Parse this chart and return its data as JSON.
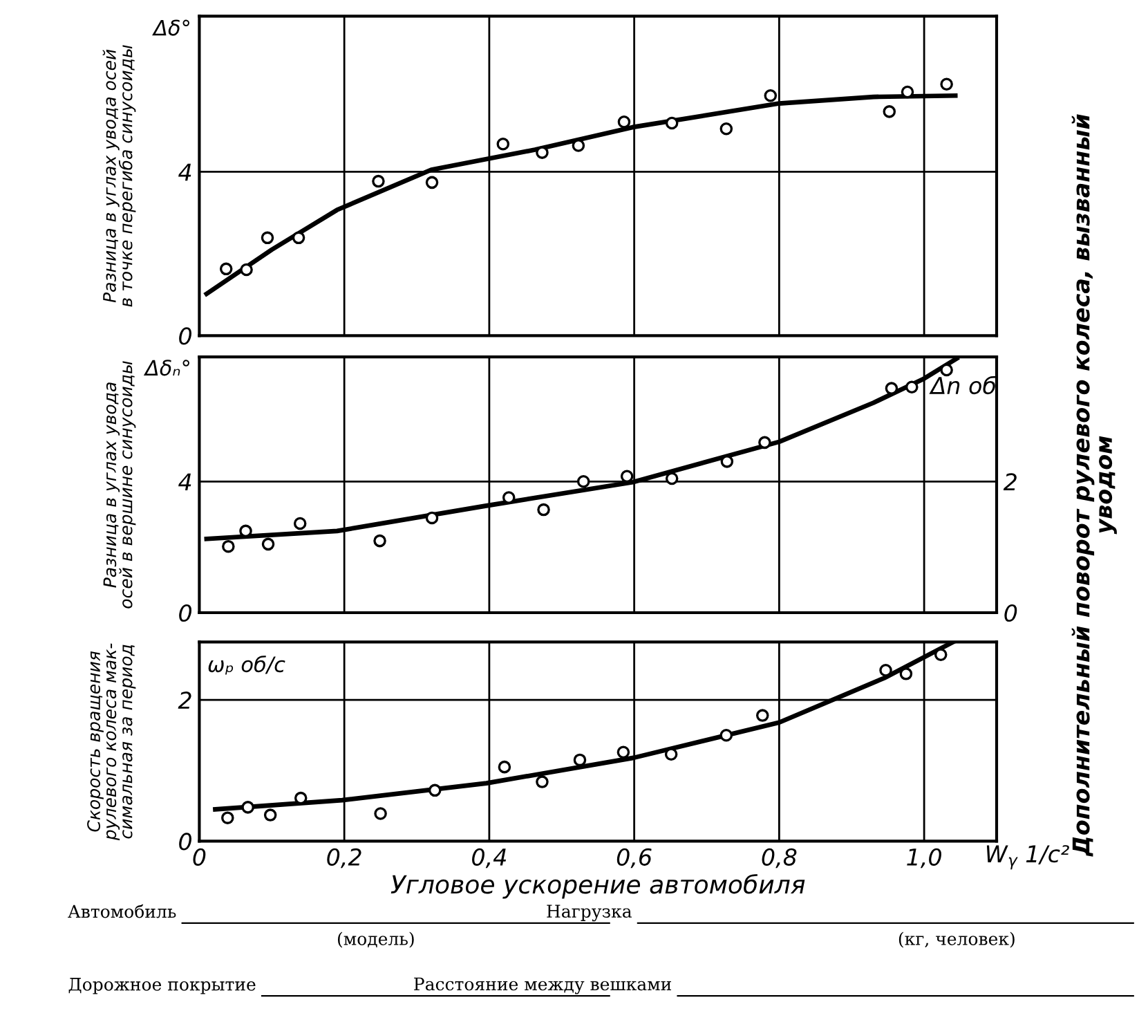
{
  "chart_data": [
    {
      "type": "scatter",
      "ylabel": "Разница в углах увода осей\nв точке перегиба синусоиды",
      "annotations": [
        "Δδ°"
      ],
      "xlim": [
        0,
        1.1
      ],
      "xticks": [
        0,
        0.2,
        0.4,
        0.6,
        0.8,
        1.0
      ],
      "ylim": [
        0,
        7.8
      ],
      "yticks": [
        0,
        4
      ],
      "tick_labels": "y",
      "grid": true,
      "marker": "circle",
      "series": [
        {
          "color": "#000000",
          "x": [
            0.037,
            0.065,
            0.094,
            0.137,
            0.247,
            0.321,
            0.419,
            0.473,
            0.523,
            0.586,
            0.652,
            0.727,
            0.788,
            0.952,
            0.977,
            1.031
          ],
          "values": [
            1.63,
            1.61,
            2.39,
            2.39,
            3.77,
            3.74,
            4.68,
            4.47,
            4.64,
            5.22,
            5.19,
            5.05,
            5.86,
            5.47,
            5.95,
            6.14
          ]
        },
        {
          "type": "line",
          "marker": "none",
          "color": "#000000",
          "x": [
            0.01,
            0.1,
            0.19,
            0.32,
            0.463,
            0.598,
            0.8,
            0.93,
            1.043
          ],
          "values": [
            1.02,
            2.1,
            3.07,
            4.05,
            4.54,
            5.09,
            5.67,
            5.83,
            5.86
          ]
        }
      ]
    },
    {
      "type": "scatter",
      "ylabel": "Разница в углах увода\nосей в вершине синусоиды",
      "y2label": "Дополнительный поворот рулевого колеса, вызванный\nуводом",
      "annotations": [
        "Δδₙ°",
        "Δn об"
      ],
      "xlim": [
        0,
        1.1
      ],
      "xticks": [
        0,
        0.2,
        0.4,
        0.6,
        0.8,
        1.0
      ],
      "ylim": [
        0,
        7.8
      ],
      "yticks": [
        0,
        4
      ],
      "y2lim": [
        0,
        3.9
      ],
      "y2ticks": [
        0,
        2
      ],
      "tick_labels": "y",
      "grid": true,
      "marker": "circle",
      "series": [
        {
          "color": "#000000",
          "x": [
            0.04,
            0.064,
            0.095,
            0.139,
            0.249,
            0.321,
            0.427,
            0.475,
            0.53,
            0.59,
            0.652,
            0.728,
            0.78,
            0.955,
            0.983,
            1.031
          ],
          "values": [
            2.02,
            2.49,
            2.09,
            2.72,
            2.19,
            2.89,
            3.51,
            3.14,
            4.0,
            4.16,
            4.09,
            4.61,
            5.19,
            6.84,
            6.88,
            7.4
          ]
        },
        {
          "type": "line",
          "marker": "none",
          "color": "#000000",
          "x": [
            0.01,
            0.19,
            0.393,
            0.598,
            0.8,
            0.93,
            1.0,
            1.045
          ],
          "values": [
            2.25,
            2.49,
            3.25,
            3.98,
            5.21,
            6.4,
            7.14,
            7.75
          ]
        }
      ]
    },
    {
      "type": "scatter",
      "ylabel": "Скорость вращения\nрулевого колеса мак-\nсимальная за период",
      "xlabel": "Угловое ускорение автомобиля",
      "annotations": [
        "ωₚ об/с",
        "W$_{γ}$ 1/с²",
        "Автомобиль",
        "(модель)",
        "Нагрузка",
        "(кг, человек)",
        "Дорожное покрытие",
        "Расстояние между вешками"
      ],
      "xlim": [
        0,
        1.1
      ],
      "xticks": [
        0,
        {
          "value": 0.2,
          "label": "0,2"
        },
        {
          "value": 0.4,
          "label": "0,4"
        },
        {
          "value": 0.6,
          "label": "0,6"
        },
        {
          "value": 0.8,
          "label": "0,8"
        },
        {
          "value": 1.0,
          "label": "1,0"
        }
      ],
      "ylim": [
        0,
        2.82
      ],
      "yticks": [
        0,
        2
      ],
      "grid": true,
      "marker": "circle",
      "series": [
        {
          "color": "#000000",
          "x": [
            0.039,
            0.067,
            0.098,
            0.14,
            0.25,
            0.325,
            0.421,
            0.473,
            0.525,
            0.585,
            0.651,
            0.727,
            0.777,
            0.947,
            0.975,
            1.023
          ],
          "values": [
            0.33,
            0.48,
            0.37,
            0.61,
            0.39,
            0.72,
            1.05,
            0.84,
            1.15,
            1.26,
            1.23,
            1.5,
            1.78,
            2.42,
            2.37,
            2.64
          ]
        },
        {
          "type": "line",
          "marker": "none",
          "color": "#000000",
          "x": [
            0.022,
            0.197,
            0.396,
            0.599,
            0.8,
            0.945,
            1.04
          ],
          "values": [
            0.45,
            0.58,
            0.82,
            1.18,
            1.68,
            2.31,
            2.82
          ]
        }
      ]
    }
  ]
}
